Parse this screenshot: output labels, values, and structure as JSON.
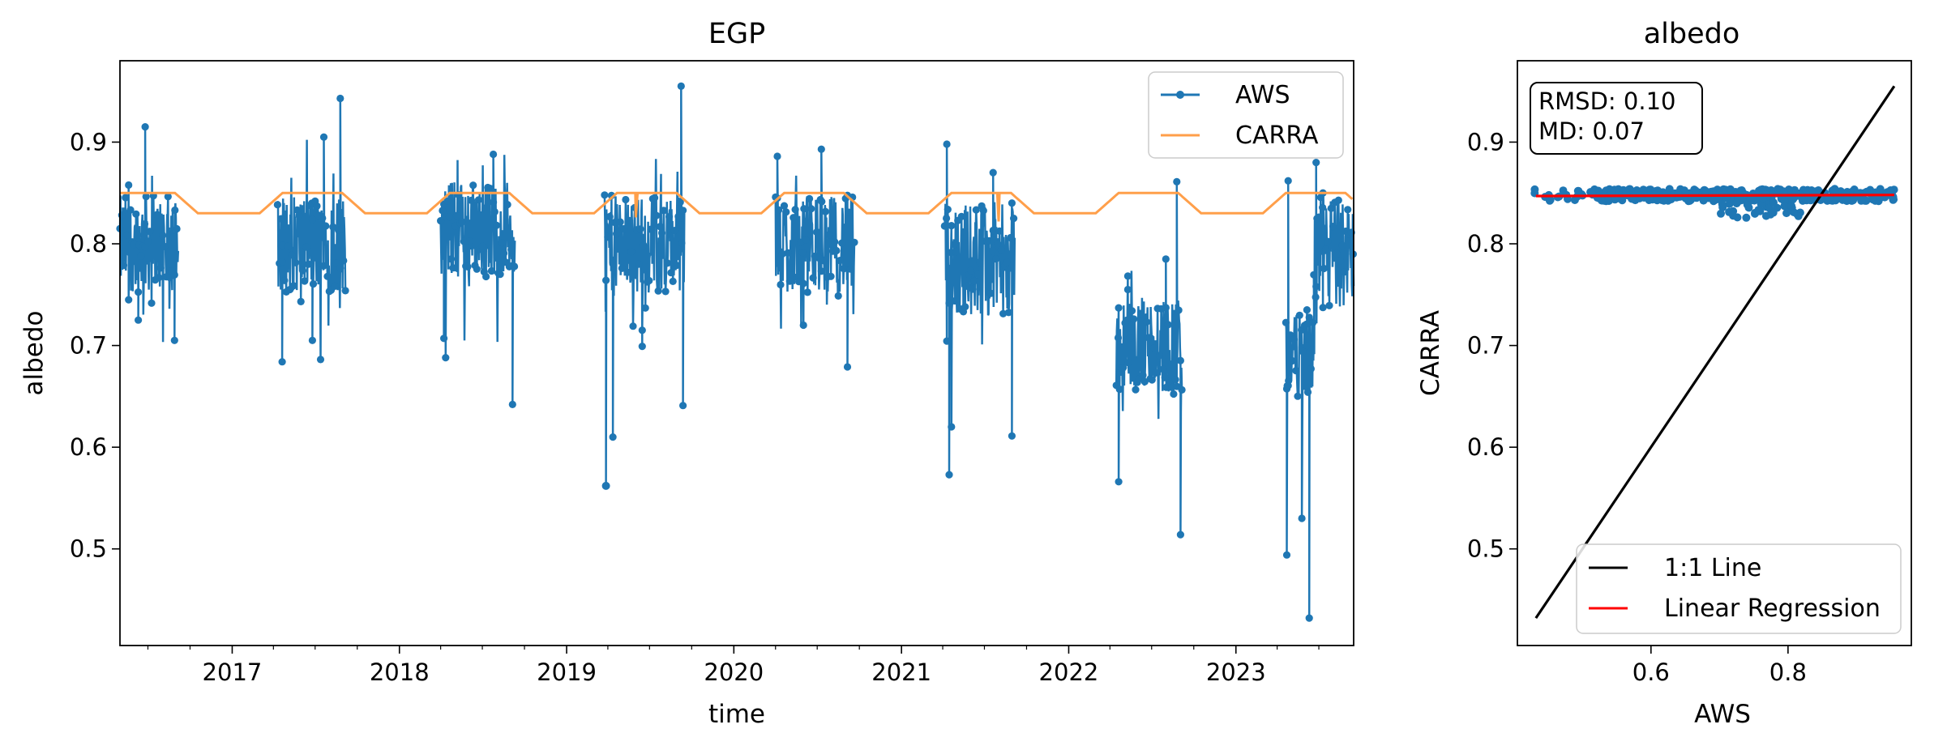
{
  "chart_data": [
    {
      "type": "line",
      "title": "EGP",
      "xlabel": "time",
      "ylabel": "albedo",
      "xlim": [
        "2016-05-01",
        "2023-09-15"
      ],
      "ylim": [
        0.405,
        0.98
      ],
      "x_ticks": [
        "2017",
        "2018",
        "2019",
        "2020",
        "2021",
        "2022",
        "2023"
      ],
      "y_ticks": [
        "0.5",
        "0.6",
        "0.7",
        "0.8",
        "0.9"
      ],
      "grid": false,
      "legend": {
        "placement": "top-right",
        "entries": [
          "AWS",
          "CARRA"
        ]
      },
      "series": [
        {
          "name": "AWS",
          "style": "line-with-markers",
          "color": "#1f77b4",
          "segments": [
            {
              "start": "2016-05-01",
              "end": "2016-09-05",
              "base": 0.8,
              "spread": 0.06,
              "outliers": [
                [
                  "2016-06-25",
                  0.915
                ],
                [
                  "2016-08-28",
                  0.705
                ],
                [
                  "2016-06-10",
                  0.725
                ],
                [
                  "2016-05-20",
                  0.745
                ]
              ]
            },
            {
              "start": "2017-04-10",
              "end": "2017-09-05",
              "base": 0.8,
              "spread": 0.06,
              "outliers": [
                [
                  "2017-08-25",
                  0.943
                ],
                [
                  "2017-04-20",
                  0.684
                ],
                [
                  "2017-06-25",
                  0.705
                ],
                [
                  "2017-07-20",
                  0.905
                ]
              ]
            },
            {
              "start": "2018-04-01",
              "end": "2018-09-10",
              "base": 0.815,
              "spread": 0.06,
              "outliers": [
                [
                  "2018-09-05",
                  0.642
                ],
                [
                  "2018-04-08",
                  0.707
                ],
                [
                  "2018-07-25",
                  0.888
                ]
              ]
            },
            {
              "start": "2019-03-25",
              "end": "2019-09-15",
              "base": 0.8,
              "spread": 0.06,
              "outliers": [
                [
                  "2019-03-28",
                  0.562
                ],
                [
                  "2019-04-12",
                  0.61
                ],
                [
                  "2019-09-08",
                  0.955
                ],
                [
                  "2019-09-12",
                  0.641
                ],
                [
                  "2019-06-15",
                  0.715
                ]
              ]
            },
            {
              "start": "2020-04-01",
              "end": "2020-09-20",
              "base": 0.8,
              "spread": 0.06,
              "outliers": [
                [
                  "2020-04-05",
                  0.886
                ],
                [
                  "2020-07-10",
                  0.893
                ],
                [
                  "2020-09-05",
                  0.679
                ],
                [
                  "2020-06-01",
                  0.72
                ]
              ]
            },
            {
              "start": "2021-04-05",
              "end": "2021-09-05",
              "base": 0.785,
              "spread": 0.07,
              "outliers": [
                [
                  "2021-04-10",
                  0.898
                ],
                [
                  "2021-04-15",
                  0.573
                ],
                [
                  "2021-04-20",
                  0.62
                ],
                [
                  "2021-08-30",
                  0.611
                ],
                [
                  "2021-07-20",
                  0.87
                ]
              ]
            },
            {
              "start": "2022-04-15",
              "end": "2022-09-05",
              "base": 0.7,
              "spread": 0.06,
              "outliers": [
                [
                  "2022-04-20",
                  0.566
                ],
                [
                  "2022-09-02",
                  0.514
                ],
                [
                  "2022-08-25",
                  0.861
                ],
                [
                  "2022-05-10",
                  0.755
                ],
                [
                  "2022-08-01",
                  0.785
                ]
              ]
            },
            {
              "start": "2023-04-20",
              "end": "2023-06-20",
              "base": 0.69,
              "spread": 0.05,
              "outliers": [
                [
                  "2023-04-22",
                  0.494
                ],
                [
                  "2023-04-25",
                  0.862
                ],
                [
                  "2023-06-10",
                  0.432
                ],
                [
                  "2023-06-05",
                  0.735
                ],
                [
                  "2023-05-25",
                  0.53
                ]
              ]
            },
            {
              "start": "2023-06-20",
              "end": "2023-09-15",
              "base": 0.79,
              "spread": 0.07,
              "outliers": [
                [
                  "2023-06-25",
                  0.88
                ],
                [
                  "2023-07-10",
                  0.85
                ]
              ]
            }
          ]
        },
        {
          "name": "CARRA",
          "style": "line",
          "color": "#ff9f4a",
          "seasonal": {
            "summer_value": 0.85,
            "winter_value": 0.83,
            "dip": [
              [
                "2019-06-01",
                0.826
              ],
              [
                "2021-08-01",
                0.822
              ]
            ]
          }
        }
      ]
    },
    {
      "type": "scatter",
      "title": "albedo",
      "xlabel": "AWS",
      "ylabel": "CARRA",
      "xlim": [
        0.405,
        0.98
      ],
      "ylim": [
        0.405,
        0.98
      ],
      "x_ticks": [
        "0.6",
        "0.8"
      ],
      "y_ticks": [
        "0.5",
        "0.6",
        "0.7",
        "0.8",
        "0.9"
      ],
      "grid": false,
      "stats": {
        "rmsd": "RMSD: 0.10",
        "md": "MD: 0.07"
      },
      "scatter_points": {
        "x_range": [
          0.43,
          0.955
        ],
        "dense_range": [
          0.52,
          0.9
        ],
        "y_center": 0.848,
        "y_spread": 0.006,
        "low_cluster": [
          [
            0.7,
            0.82
          ],
          0.825,
          0.845
        ]
      },
      "lines": [
        {
          "name": "1:1 Line",
          "color": "#000000",
          "x": [
            0.432,
            0.955
          ],
          "y": [
            0.432,
            0.955
          ]
        },
        {
          "name": "Linear Regression",
          "color": "#ff0000",
          "x": [
            0.432,
            0.955
          ],
          "y": [
            0.847,
            0.848
          ]
        }
      ],
      "legend": {
        "placement": "bottom-right",
        "entries": [
          "1:1 Line",
          "Linear Regression"
        ]
      }
    }
  ]
}
